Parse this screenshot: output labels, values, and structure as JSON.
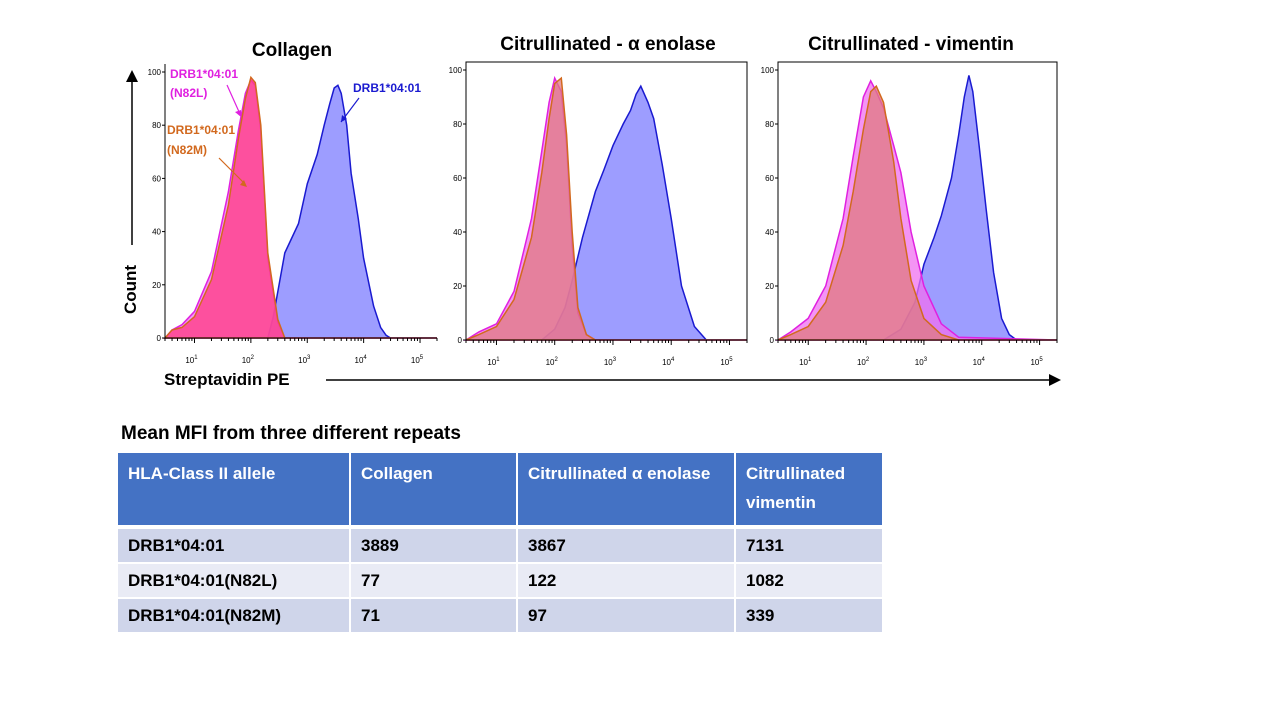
{
  "figure": {
    "y_axis_label": "Count",
    "x_axis_label": "Streptavidin PE"
  },
  "colors": {
    "drb_0401": "#1a1ad0",
    "drb_0401_fill": "#8c8cff",
    "n82l": "#e020e0",
    "n82l_fill": "#f070f0",
    "n82m": "#d2691e",
    "n82m_fill": "#e07a80",
    "collagen_n82m_fill": "#ff3e88"
  },
  "chart_data": [
    {
      "type": "area",
      "title": "Collagen",
      "xscale": "log",
      "xlim": [
        3,
        200000
      ],
      "ylim": [
        0,
        100
      ],
      "y_ticks": [
        0,
        20,
        40,
        60,
        80,
        100
      ],
      "x_tick_labels": [
        "10",
        "10",
        "10",
        "10",
        "10"
      ],
      "x_tick_exponents": [
        "1",
        "2",
        "3",
        "4",
        "5"
      ],
      "series": [
        {
          "name": "DRB1*04:01",
          "x": [
            3,
            200,
            250,
            400,
            700,
            1000,
            1500,
            2000,
            2500,
            3000,
            3500,
            4000,
            5000,
            6000,
            8000,
            10000,
            15000,
            20000,
            25000,
            30000,
            200000
          ],
          "y": [
            0,
            0,
            8,
            32,
            43,
            58,
            69,
            80,
            88,
            94,
            95,
            92,
            80,
            62,
            45,
            30,
            12,
            4,
            1,
            0,
            0
          ]
        },
        {
          "name": "DRB1*04:01 (N82L)",
          "x": [
            3,
            4,
            6,
            10,
            20,
            40,
            60,
            80,
            100,
            120,
            150,
            200,
            300,
            400,
            200000
          ],
          "y": [
            0,
            3,
            5,
            10,
            25,
            55,
            78,
            92,
            97,
            95,
            78,
            30,
            6,
            0,
            0
          ]
        },
        {
          "name": "DRB1*04:01 (N82M)",
          "x": [
            3,
            4,
            6,
            10,
            20,
            40,
            60,
            80,
            100,
            120,
            150,
            200,
            300,
            400,
            200000
          ],
          "y": [
            0,
            3,
            4,
            8,
            22,
            50,
            75,
            90,
            98,
            96,
            80,
            32,
            7,
            0,
            0
          ]
        }
      ],
      "annotations": [
        {
          "text": "DRB1*04:01",
          "target": "DRB1*04:01"
        },
        {
          "text": "DRB1*04:01",
          "text2": "(N82L)",
          "target": "DRB1*04:01 (N82L)"
        },
        {
          "text": "DRB1*04:01",
          "text2": "(N82M)",
          "target": "DRB1*04:01 (N82M)"
        }
      ]
    },
    {
      "type": "area",
      "title": "Citrullinated - α enolase",
      "xscale": "log",
      "xlim": [
        3,
        200000
      ],
      "ylim": [
        0,
        100
      ],
      "y_ticks": [
        0,
        20,
        40,
        60,
        80,
        100
      ],
      "x_tick_labels": [
        "10",
        "10",
        "10",
        "10",
        "10"
      ],
      "x_tick_exponents": [
        "1",
        "2",
        "3",
        "4",
        "5"
      ],
      "series": [
        {
          "name": "DRB1*04:01",
          "x": [
            3,
            60,
            100,
            150,
            200,
            300,
            500,
            700,
            1000,
            1500,
            2000,
            2500,
            3000,
            4000,
            5000,
            7000,
            10000,
            15000,
            25000,
            40000,
            200000
          ],
          "y": [
            0,
            0,
            4,
            12,
            22,
            38,
            55,
            63,
            72,
            80,
            85,
            91,
            94,
            88,
            82,
            65,
            45,
            20,
            5,
            0,
            0
          ]
        },
        {
          "name": "DRB1*04:01 (N82L)",
          "x": [
            3,
            5,
            10,
            20,
            40,
            60,
            80,
            100,
            130,
            160,
            200,
            250,
            350,
            500,
            200000
          ],
          "y": [
            0,
            3,
            6,
            18,
            45,
            70,
            88,
            97,
            92,
            72,
            35,
            10,
            2,
            0,
            0
          ]
        },
        {
          "name": "DRB1*04:01 (N82M)",
          "x": [
            3,
            5,
            10,
            20,
            40,
            60,
            80,
            100,
            130,
            160,
            200,
            250,
            350,
            500,
            200000
          ],
          "y": [
            0,
            2,
            5,
            15,
            38,
            62,
            82,
            95,
            97,
            76,
            40,
            12,
            2,
            0,
            0
          ]
        }
      ],
      "annotations": []
    },
    {
      "type": "area",
      "title": "Citrullinated - vimentin",
      "xscale": "log",
      "xlim": [
        3,
        200000
      ],
      "ylim": [
        0,
        100
      ],
      "y_ticks": [
        0,
        20,
        40,
        60,
        80,
        100
      ],
      "x_tick_labels": [
        "10",
        "10",
        "10",
        "10",
        "10"
      ],
      "x_tick_exponents": [
        "1",
        "2",
        "3",
        "4",
        "5"
      ],
      "series": [
        {
          "name": "DRB1*04:01",
          "x": [
            3,
            200,
            400,
            700,
            1000,
            1500,
            2000,
            3000,
            4000,
            5000,
            6000,
            7000,
            9000,
            12000,
            16000,
            22000,
            30000,
            40000,
            200000
          ],
          "y": [
            0,
            0,
            4,
            14,
            28,
            38,
            46,
            60,
            76,
            90,
            98,
            92,
            72,
            48,
            25,
            8,
            2,
            0,
            0
          ]
        },
        {
          "name": "DRB1*04:01 (N82L)",
          "x": [
            3,
            5,
            10,
            20,
            40,
            60,
            90,
            120,
            150,
            200,
            300,
            400,
            600,
            1000,
            2000,
            4000,
            200000
          ],
          "y": [
            0,
            3,
            8,
            20,
            45,
            68,
            90,
            96,
            92,
            86,
            72,
            62,
            40,
            20,
            6,
            1,
            0
          ]
        },
        {
          "name": "DRB1*04:01 (N82M)",
          "x": [
            3,
            5,
            10,
            20,
            40,
            60,
            90,
            120,
            150,
            200,
            300,
            400,
            600,
            1000,
            2000,
            4000,
            200000
          ],
          "y": [
            0,
            2,
            5,
            14,
            35,
            55,
            78,
            92,
            94,
            88,
            66,
            45,
            22,
            8,
            2,
            0,
            0
          ]
        }
      ],
      "annotations": []
    }
  ],
  "table": {
    "caption": "Mean MFI from three different repeats",
    "headers": [
      "HLA-Class II allele",
      "Collagen",
      "Citrullinated α enolase",
      "Citrullinated vimentin"
    ],
    "rows": [
      [
        "DRB1*04:01",
        "3889",
        "3867",
        "7131"
      ],
      [
        "DRB1*04:01(N82L)",
        "77",
        "122",
        "1082"
      ],
      [
        "DRB1*04:01(N82M)",
        "71",
        "97",
        "339"
      ]
    ]
  }
}
